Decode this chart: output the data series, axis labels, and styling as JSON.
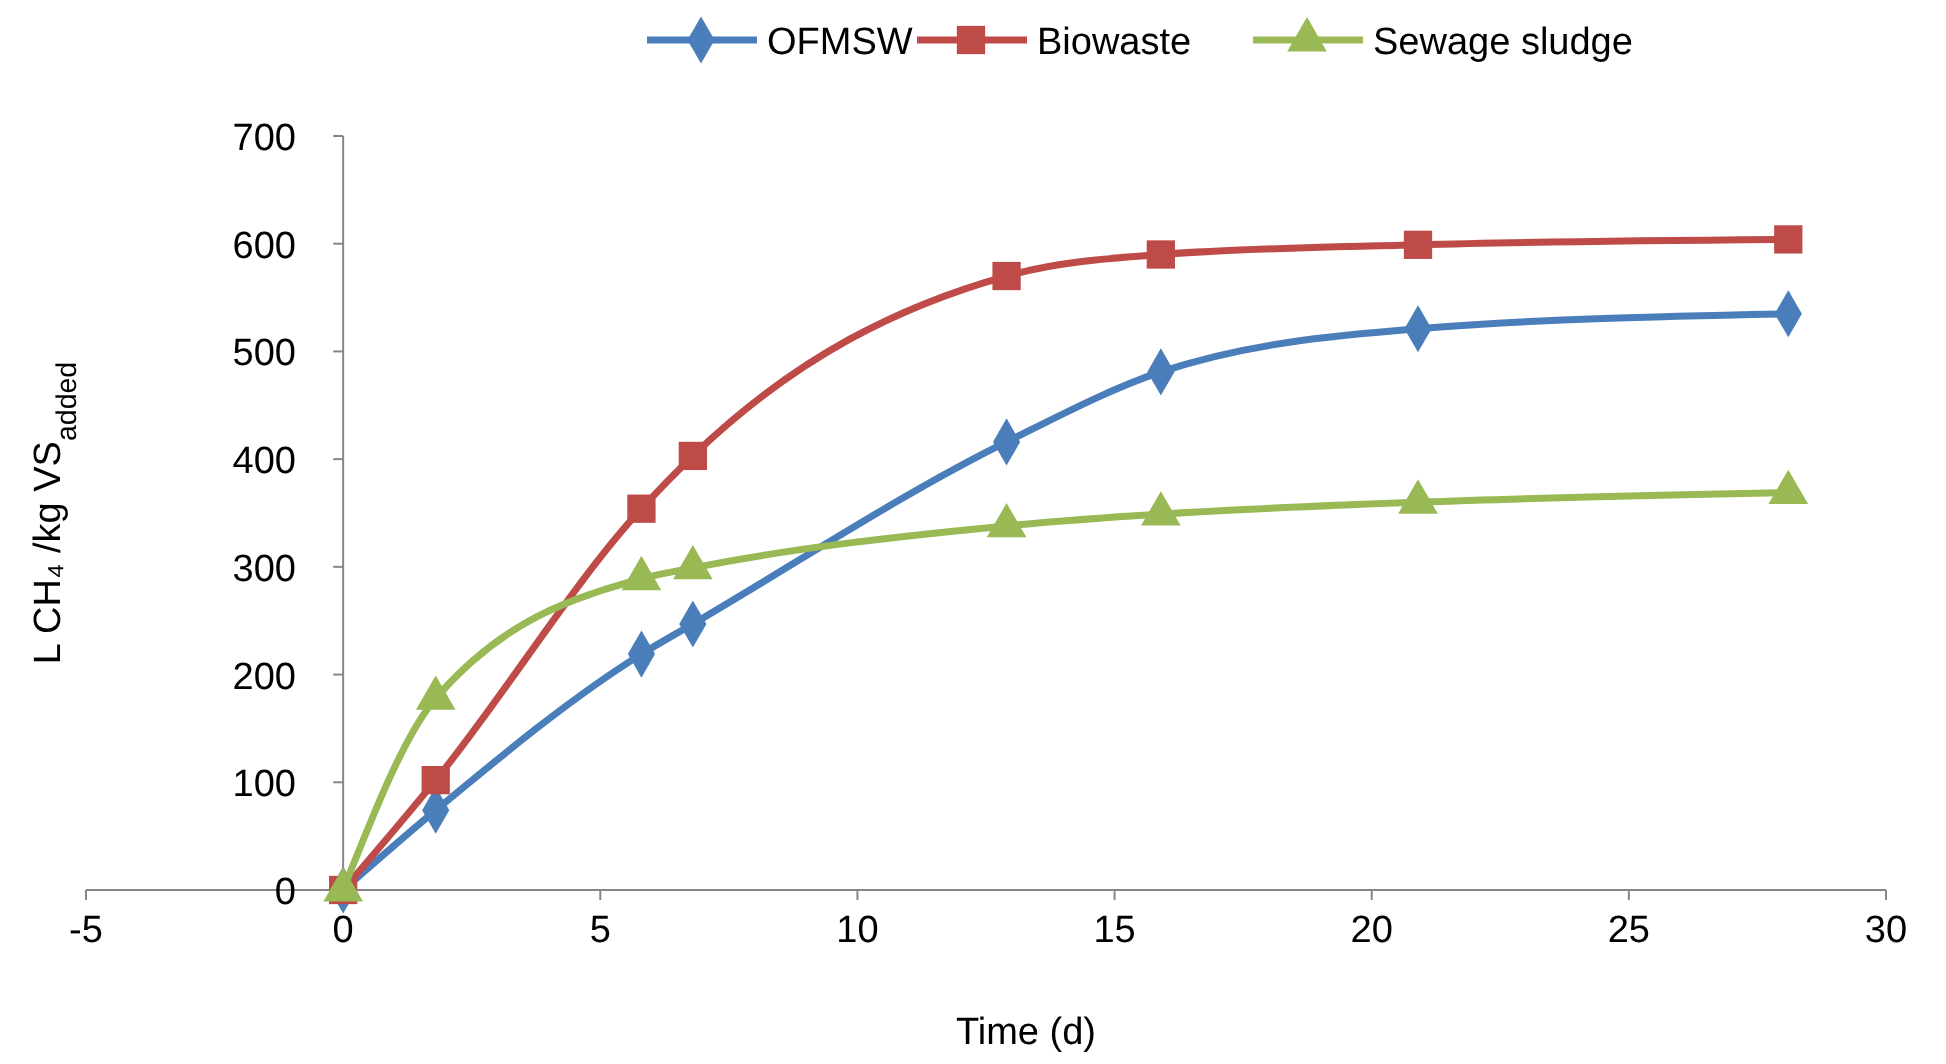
{
  "chart_data": {
    "type": "line",
    "xlabel": "Time (d)",
    "ylabel": "L CH₄ /kg VS$_{added}$",
    "xlim": [
      -5,
      30
    ],
    "xticks": [
      -5,
      0,
      5,
      10,
      15,
      20,
      25,
      30
    ],
    "ylim": [
      0,
      700
    ],
    "yticks": [
      0,
      100,
      200,
      300,
      400,
      500,
      600,
      700
    ],
    "grid": false,
    "legend": "top",
    "line_style": "solid",
    "x": [
      0,
      1.8,
      5.8,
      6.8,
      12.9,
      15.9,
      20.9,
      28.1
    ],
    "series": [
      {
        "name": "OFMSW",
        "color": "#4a7ebb",
        "marker": "diamond",
        "values": [
          0,
          74,
          219,
          247,
          416,
          481,
          521,
          535
        ]
      },
      {
        "name": "Biowaste",
        "color": "#be4b48",
        "marker": "square",
        "values": [
          0,
          102,
          354,
          403,
          570,
          590,
          599,
          604
        ]
      },
      {
        "name": "Sewage sludge",
        "color": "#98b954",
        "marker": "triangle",
        "values": [
          0,
          178,
          289,
          299,
          338,
          349,
          360,
          369
        ]
      }
    ]
  }
}
